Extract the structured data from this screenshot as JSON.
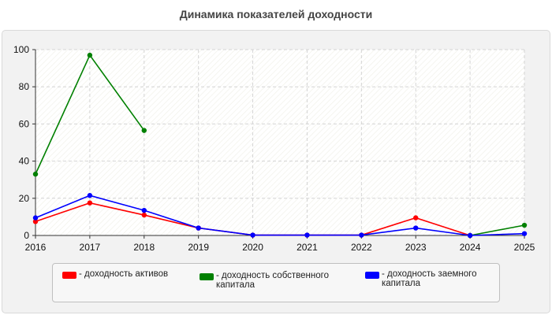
{
  "chart_data": {
    "type": "line",
    "title": "Динамика показателей доходности",
    "xlabel": "",
    "ylabel": "",
    "x": [
      "2016",
      "2017",
      "2018",
      "2019",
      "2020",
      "2021",
      "2022",
      "2023",
      "2024",
      "2025"
    ],
    "ylim": [
      0,
      100
    ],
    "yticks": [
      0,
      20,
      40,
      60,
      80,
      100
    ],
    "grid": true,
    "legend_position": "bottom",
    "series": [
      {
        "name": "- доходность активов",
        "color": "#ff0000",
        "values": [
          7.5,
          17.5,
          11,
          4,
          0.2,
          0.2,
          0.2,
          9.5,
          0,
          null
        ]
      },
      {
        "name": "- доходность собственного капитала",
        "color": "#008000",
        "values": [
          33,
          97,
          56.5,
          null,
          null,
          null,
          null,
          null,
          0,
          5.5
        ]
      },
      {
        "name": "- доходность заемного капитала",
        "color": "#0000ff",
        "values": [
          9.5,
          21.5,
          13.5,
          4,
          0.2,
          0.2,
          0.2,
          4,
          0,
          1
        ]
      }
    ]
  }
}
